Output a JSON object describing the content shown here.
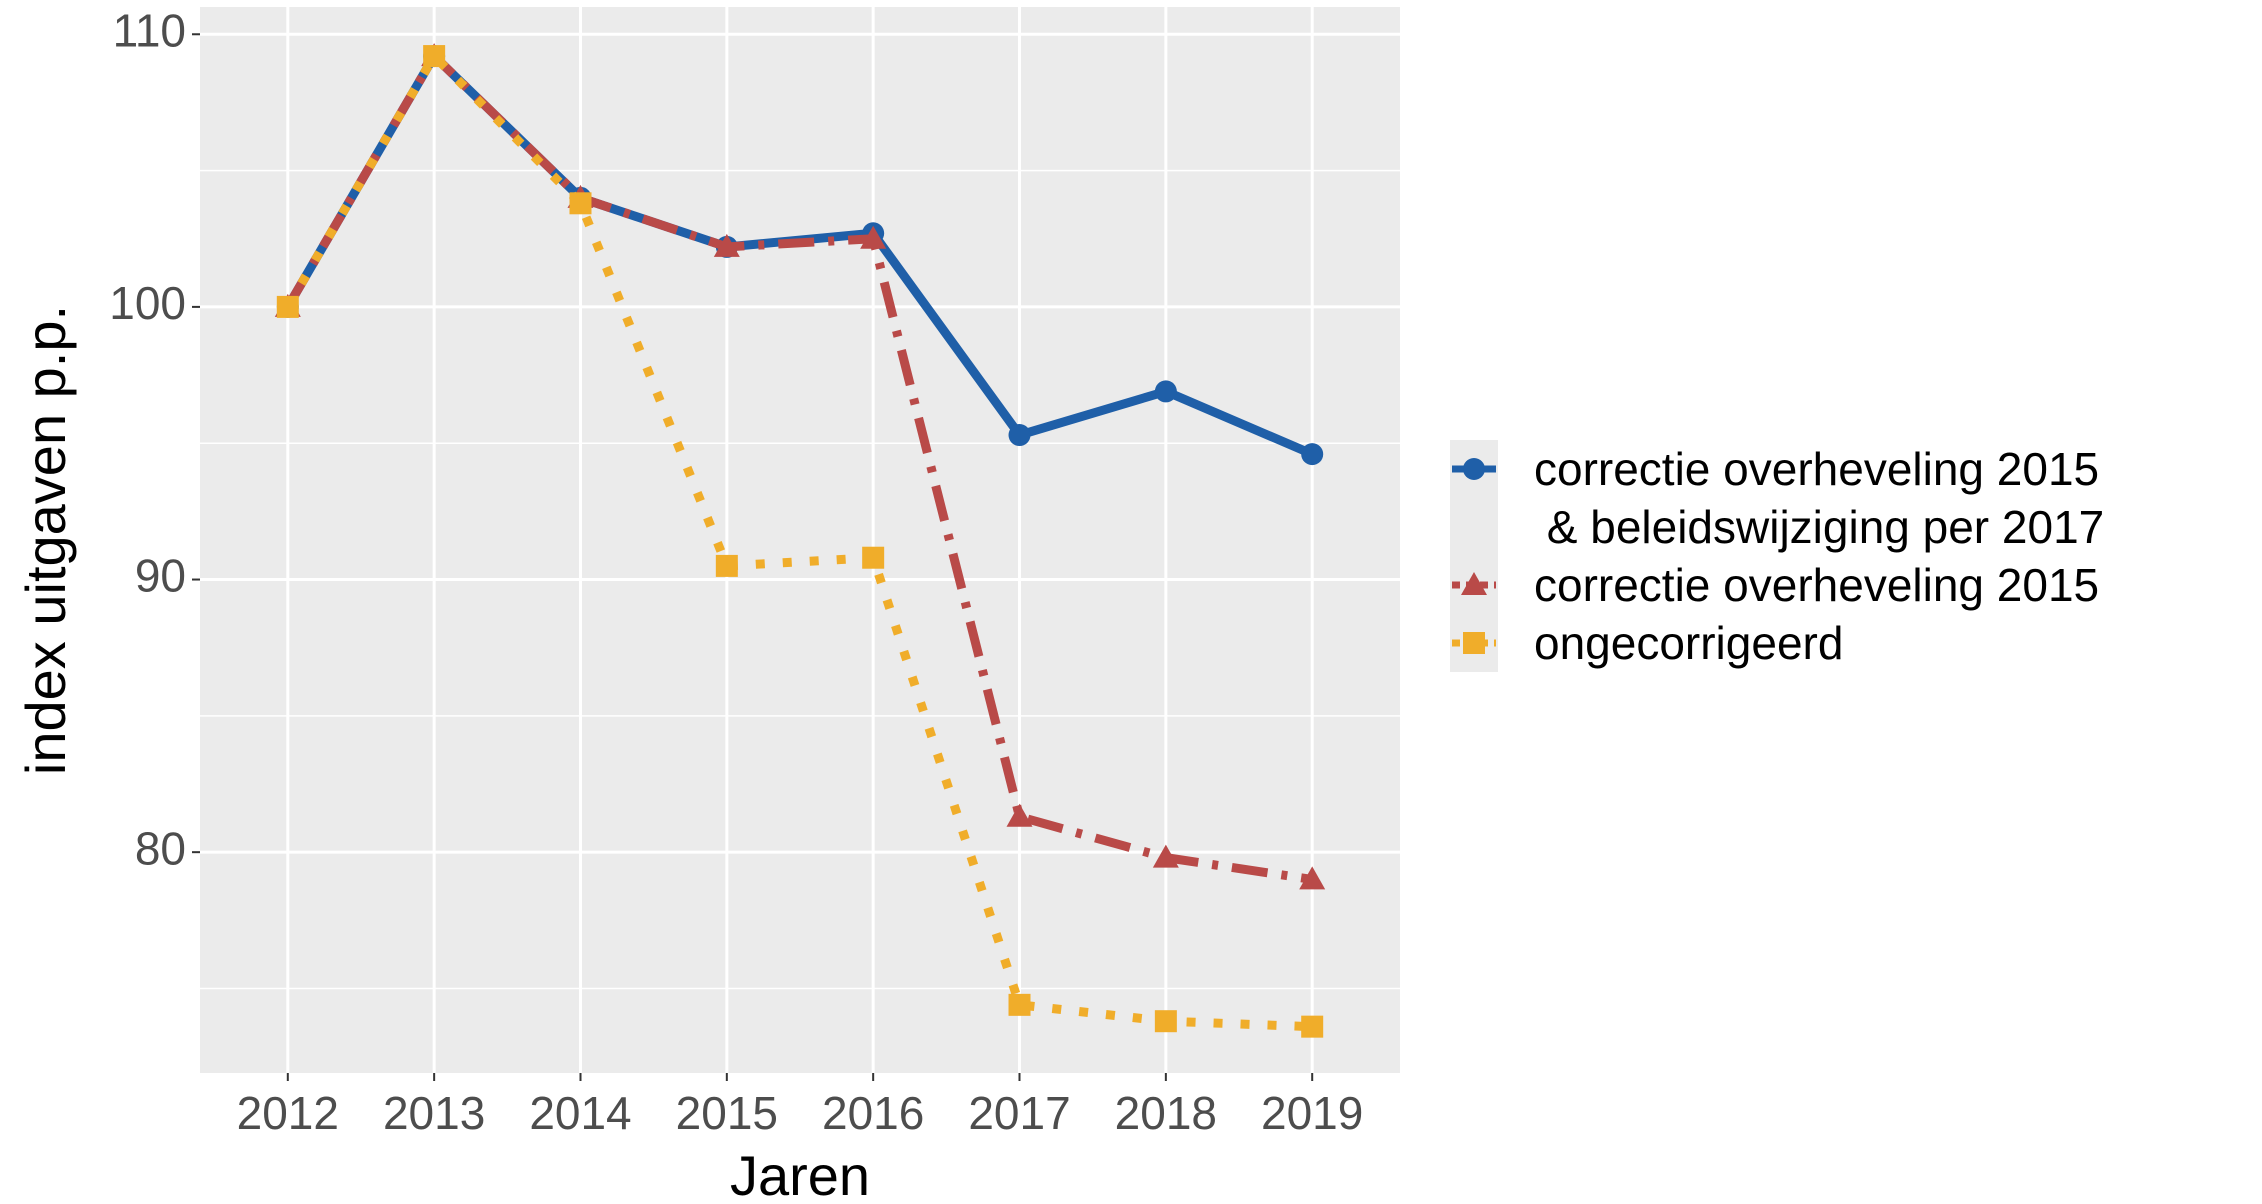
{
  "chart_data": {
    "type": "line",
    "xlabel": "Jaren",
    "ylabel": "index uitgaven p.p.",
    "categories": [
      "2012",
      "2013",
      "2014",
      "2015",
      "2016",
      "2017",
      "2018",
      "2019"
    ],
    "series": [
      {
        "name": "correctie overheveling 2015\n & beleidswijziging per 2017",
        "color": "#1f5fa8",
        "dash": "solid",
        "marker": "circle",
        "values": [
          100,
          109.2,
          104.0,
          102.2,
          102.7,
          95.3,
          96.9,
          94.6
        ]
      },
      {
        "name": "correctie overheveling 2015",
        "color": "#b94a48",
        "dash": "dashdot",
        "marker": "triangle",
        "values": [
          100,
          109.2,
          104.0,
          102.2,
          102.5,
          81.3,
          79.8,
          79.0
        ]
      },
      {
        "name": "ongecorrigeerd",
        "color": "#f0ad2a",
        "dash": "dotted",
        "marker": "square",
        "values": [
          100,
          109.2,
          103.8,
          90.5,
          90.8,
          74.4,
          73.8,
          73.6
        ]
      }
    ],
    "ylim": [
      71.9,
      111.0
    ],
    "yticks": [
      80,
      90,
      100,
      110
    ],
    "yminor": [
      75,
      85,
      95,
      105
    ],
    "grid": true,
    "legend": "right"
  }
}
